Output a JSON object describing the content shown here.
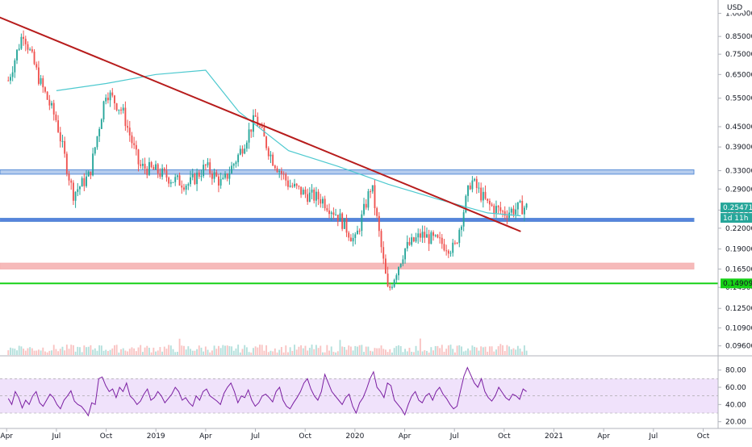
{
  "header": {
    "currency": "USD"
  },
  "colors": {
    "up": "#26a69a",
    "down": "#ef5350",
    "trendline": "#b71c1c",
    "ma": "#4dc9cf",
    "resistance_zone": "#5b8fd8",
    "support_zone": "#3a6fd6",
    "red_zone": "#f5b3b3",
    "green_line": "#16d116",
    "rsi_line": "#7b1fa2",
    "rsi_band": "#e9d5f9"
  },
  "price_labels": {
    "last_price": "0.25471",
    "countdown": "1d 11h",
    "green_level": "0.14909"
  },
  "chart_data": [
    {
      "type": "candlestick",
      "title": "",
      "y_scale": "log",
      "ylim": [
        0.09,
        1.05
      ],
      "y_ticks": [
        "1.00000",
        "0.85000",
        "0.75000",
        "0.65000",
        "0.55000",
        "0.45000",
        "0.39000",
        "0.33000",
        "0.29000",
        "0.25000",
        "0.22000",
        "0.19000",
        "0.16500",
        "0.14500",
        "0.12500",
        "0.10900",
        "0.09600"
      ],
      "x_ticks": [
        "Apr",
        "Jul",
        "Oct",
        "2019",
        "Apr",
        "Jul",
        "Oct",
        "2020",
        "Apr",
        "Jul",
        "Oct",
        "2021",
        "Apr",
        "Jul",
        "Oct"
      ],
      "price_path": {
        "dates": [
          "2018-04",
          "2018-05",
          "2018-06",
          "2018-07",
          "2018-08",
          "2018-09",
          "2018-10",
          "2018-11",
          "2018-12",
          "2019-01",
          "2019-02",
          "2019-03",
          "2019-04",
          "2019-05",
          "2019-06",
          "2019-07",
          "2019-08",
          "2019-09",
          "2019-10",
          "2019-11",
          "2019-12",
          "2020-01",
          "2020-02",
          "2020-03",
          "2020-04",
          "2020-05",
          "2020-06",
          "2020-07",
          "2020-08",
          "2020-09",
          "2020-10",
          "2020-11"
        ],
        "approx_close": [
          0.6,
          0.88,
          0.62,
          0.47,
          0.28,
          0.32,
          0.58,
          0.5,
          0.34,
          0.33,
          0.31,
          0.3,
          0.34,
          0.3,
          0.37,
          0.48,
          0.36,
          0.3,
          0.28,
          0.27,
          0.24,
          0.2,
          0.3,
          0.14,
          0.19,
          0.21,
          0.2,
          0.19,
          0.31,
          0.26,
          0.245,
          0.255
        ]
      },
      "moving_average": {
        "dates": [
          "2018-07",
          "2018-10",
          "2019-01",
          "2019-04",
          "2019-06",
          "2019-09",
          "2019-12",
          "2020-03",
          "2020-06",
          "2020-09",
          "2020-11"
        ],
        "values": [
          0.58,
          0.61,
          0.65,
          0.67,
          0.5,
          0.38,
          0.34,
          0.3,
          0.27,
          0.245,
          0.24
        ]
      },
      "trendline": {
        "from": {
          "date": "2018-03",
          "value": 1.0
        },
        "to": {
          "date": "2020-11",
          "value": 0.215
        }
      },
      "horizontal_zones": [
        {
          "name": "resistance",
          "low": 0.322,
          "high": 0.332
        },
        {
          "name": "support",
          "low": 0.232,
          "high": 0.236
        },
        {
          "name": "demand",
          "low": 0.165,
          "high": 0.172
        }
      ],
      "horizontal_line": 0.14909,
      "last_price": 0.25471
    },
    {
      "type": "line",
      "title": "",
      "ylim": [
        15,
        90
      ],
      "y_ticks": [
        "80.00",
        "60.00",
        "40.00",
        "20.00"
      ],
      "band": [
        30,
        70
      ],
      "series": [
        {
          "values": [
            47,
            40,
            55,
            48,
            36,
            45,
            40,
            50,
            55,
            42,
            38,
            45,
            52,
            48,
            40,
            35,
            45,
            50,
            56,
            44,
            40,
            38,
            33,
            27,
            42,
            40,
            70,
            72,
            62,
            55,
            58,
            48,
            60,
            55,
            65,
            50,
            46,
            40,
            44,
            52,
            58,
            45,
            48,
            55,
            50,
            42,
            47,
            52,
            60,
            55,
            45,
            48,
            42,
            38,
            50,
            45,
            55,
            58,
            50,
            47,
            44,
            40,
            53,
            60,
            65,
            55,
            42,
            50,
            48,
            57,
            45,
            38,
            42,
            50,
            52,
            48,
            43,
            55,
            60,
            45,
            38,
            35,
            42,
            48,
            55,
            65,
            70,
            58,
            50,
            45,
            55,
            75,
            65,
            55,
            50,
            45,
            40,
            48,
            52,
            38,
            30,
            42,
            48,
            58,
            70,
            78,
            60,
            55,
            48,
            65,
            62,
            45,
            40,
            35,
            28,
            40,
            50,
            55,
            45,
            42,
            50,
            53,
            45,
            55,
            60,
            52,
            47,
            40,
            35,
            38,
            56,
            73,
            83,
            74,
            65,
            60,
            70,
            55,
            48,
            44,
            50,
            60,
            54,
            48,
            45,
            52,
            50,
            46,
            58,
            55
          ]
        }
      ]
    }
  ]
}
